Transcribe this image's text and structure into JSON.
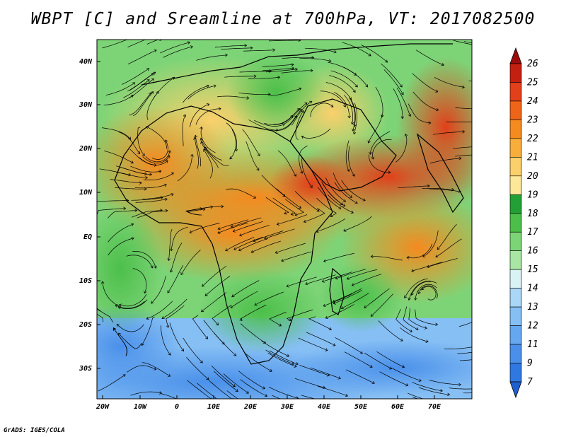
{
  "title": "WBPT [C] and Sreamline at 700hPa, VT: 2017082500",
  "credit": "GrADS: IGES/COLA",
  "map": {
    "type": "heatmap",
    "variable_label": "WBPT [C]",
    "pressure_level": "700hPa",
    "valid_time": "2017082500",
    "lon_ticks": [
      "20W",
      "10W",
      "0",
      "10E",
      "20E",
      "30E",
      "40E",
      "50E",
      "60E",
      "70E"
    ],
    "lat_ticks": [
      "40N",
      "30N",
      "20N",
      "10N",
      "EQ",
      "10S",
      "20S",
      "30S"
    ],
    "colorbar": {
      "levels": [
        "7",
        "9",
        "11",
        "12",
        "13",
        "14",
        "15",
        "16",
        "17",
        "18",
        "19",
        "20",
        "21",
        "22",
        "23",
        "24",
        "25",
        "26"
      ],
      "colors": [
        "#1f5fd0",
        "#2f78e2",
        "#4a90ea",
        "#66a8f0",
        "#86bff4",
        "#aad6f7",
        "#d9f3f4",
        "#a9e6a3",
        "#7dd477",
        "#4cbf4a",
        "#22a035",
        "#fde89a",
        "#fbd06b",
        "#f9ae3b",
        "#f58a1f",
        "#ee6418",
        "#e2401a",
        "#c42012",
        "#9c0c0c"
      ]
    }
  },
  "chart_data": {
    "type": "heatmap",
    "title": "WBPT [C] and Sreamline at 700hPa, VT: 2017082500",
    "x_ticks": [
      "20W",
      "10W",
      "0",
      "10E",
      "20E",
      "30E",
      "40E",
      "50E",
      "60E",
      "70E"
    ],
    "y_ticks": [
      "40N",
      "30N",
      "20N",
      "10N",
      "EQ",
      "10S",
      "20S",
      "30S"
    ],
    "color_levels": [
      7,
      9,
      11,
      12,
      13,
      14,
      15,
      16,
      17,
      18,
      19,
      20,
      21,
      22,
      23,
      24,
      25,
      26
    ],
    "units": "C"
  }
}
